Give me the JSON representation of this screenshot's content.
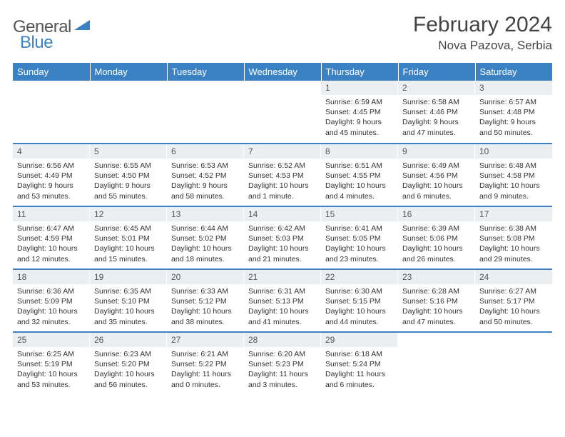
{
  "logo": {
    "general": "General",
    "blue": "Blue"
  },
  "title": "February 2024",
  "location": "Nova Pazova, Serbia",
  "colors": {
    "header_bg": "#3b82c4",
    "header_text": "#ffffff",
    "daynum_bg": "#eceff1",
    "border": "#3b82c4",
    "text": "#333333"
  },
  "day_headers": [
    "Sunday",
    "Monday",
    "Tuesday",
    "Wednesday",
    "Thursday",
    "Friday",
    "Saturday"
  ],
  "weeks": [
    [
      {
        "n": "",
        "sr": "",
        "ss": "",
        "dl": ""
      },
      {
        "n": "",
        "sr": "",
        "ss": "",
        "dl": ""
      },
      {
        "n": "",
        "sr": "",
        "ss": "",
        "dl": ""
      },
      {
        "n": "",
        "sr": "",
        "ss": "",
        "dl": ""
      },
      {
        "n": "1",
        "sr": "Sunrise: 6:59 AM",
        "ss": "Sunset: 4:45 PM",
        "dl": "Daylight: 9 hours and 45 minutes."
      },
      {
        "n": "2",
        "sr": "Sunrise: 6:58 AM",
        "ss": "Sunset: 4:46 PM",
        "dl": "Daylight: 9 hours and 47 minutes."
      },
      {
        "n": "3",
        "sr": "Sunrise: 6:57 AM",
        "ss": "Sunset: 4:48 PM",
        "dl": "Daylight: 9 hours and 50 minutes."
      }
    ],
    [
      {
        "n": "4",
        "sr": "Sunrise: 6:56 AM",
        "ss": "Sunset: 4:49 PM",
        "dl": "Daylight: 9 hours and 53 minutes."
      },
      {
        "n": "5",
        "sr": "Sunrise: 6:55 AM",
        "ss": "Sunset: 4:50 PM",
        "dl": "Daylight: 9 hours and 55 minutes."
      },
      {
        "n": "6",
        "sr": "Sunrise: 6:53 AM",
        "ss": "Sunset: 4:52 PM",
        "dl": "Daylight: 9 hours and 58 minutes."
      },
      {
        "n": "7",
        "sr": "Sunrise: 6:52 AM",
        "ss": "Sunset: 4:53 PM",
        "dl": "Daylight: 10 hours and 1 minute."
      },
      {
        "n": "8",
        "sr": "Sunrise: 6:51 AM",
        "ss": "Sunset: 4:55 PM",
        "dl": "Daylight: 10 hours and 4 minutes."
      },
      {
        "n": "9",
        "sr": "Sunrise: 6:49 AM",
        "ss": "Sunset: 4:56 PM",
        "dl": "Daylight: 10 hours and 6 minutes."
      },
      {
        "n": "10",
        "sr": "Sunrise: 6:48 AM",
        "ss": "Sunset: 4:58 PM",
        "dl": "Daylight: 10 hours and 9 minutes."
      }
    ],
    [
      {
        "n": "11",
        "sr": "Sunrise: 6:47 AM",
        "ss": "Sunset: 4:59 PM",
        "dl": "Daylight: 10 hours and 12 minutes."
      },
      {
        "n": "12",
        "sr": "Sunrise: 6:45 AM",
        "ss": "Sunset: 5:01 PM",
        "dl": "Daylight: 10 hours and 15 minutes."
      },
      {
        "n": "13",
        "sr": "Sunrise: 6:44 AM",
        "ss": "Sunset: 5:02 PM",
        "dl": "Daylight: 10 hours and 18 minutes."
      },
      {
        "n": "14",
        "sr": "Sunrise: 6:42 AM",
        "ss": "Sunset: 5:03 PM",
        "dl": "Daylight: 10 hours and 21 minutes."
      },
      {
        "n": "15",
        "sr": "Sunrise: 6:41 AM",
        "ss": "Sunset: 5:05 PM",
        "dl": "Daylight: 10 hours and 23 minutes."
      },
      {
        "n": "16",
        "sr": "Sunrise: 6:39 AM",
        "ss": "Sunset: 5:06 PM",
        "dl": "Daylight: 10 hours and 26 minutes."
      },
      {
        "n": "17",
        "sr": "Sunrise: 6:38 AM",
        "ss": "Sunset: 5:08 PM",
        "dl": "Daylight: 10 hours and 29 minutes."
      }
    ],
    [
      {
        "n": "18",
        "sr": "Sunrise: 6:36 AM",
        "ss": "Sunset: 5:09 PM",
        "dl": "Daylight: 10 hours and 32 minutes."
      },
      {
        "n": "19",
        "sr": "Sunrise: 6:35 AM",
        "ss": "Sunset: 5:10 PM",
        "dl": "Daylight: 10 hours and 35 minutes."
      },
      {
        "n": "20",
        "sr": "Sunrise: 6:33 AM",
        "ss": "Sunset: 5:12 PM",
        "dl": "Daylight: 10 hours and 38 minutes."
      },
      {
        "n": "21",
        "sr": "Sunrise: 6:31 AM",
        "ss": "Sunset: 5:13 PM",
        "dl": "Daylight: 10 hours and 41 minutes."
      },
      {
        "n": "22",
        "sr": "Sunrise: 6:30 AM",
        "ss": "Sunset: 5:15 PM",
        "dl": "Daylight: 10 hours and 44 minutes."
      },
      {
        "n": "23",
        "sr": "Sunrise: 6:28 AM",
        "ss": "Sunset: 5:16 PM",
        "dl": "Daylight: 10 hours and 47 minutes."
      },
      {
        "n": "24",
        "sr": "Sunrise: 6:27 AM",
        "ss": "Sunset: 5:17 PM",
        "dl": "Daylight: 10 hours and 50 minutes."
      }
    ],
    [
      {
        "n": "25",
        "sr": "Sunrise: 6:25 AM",
        "ss": "Sunset: 5:19 PM",
        "dl": "Daylight: 10 hours and 53 minutes."
      },
      {
        "n": "26",
        "sr": "Sunrise: 6:23 AM",
        "ss": "Sunset: 5:20 PM",
        "dl": "Daylight: 10 hours and 56 minutes."
      },
      {
        "n": "27",
        "sr": "Sunrise: 6:21 AM",
        "ss": "Sunset: 5:22 PM",
        "dl": "Daylight: 11 hours and 0 minutes."
      },
      {
        "n": "28",
        "sr": "Sunrise: 6:20 AM",
        "ss": "Sunset: 5:23 PM",
        "dl": "Daylight: 11 hours and 3 minutes."
      },
      {
        "n": "29",
        "sr": "Sunrise: 6:18 AM",
        "ss": "Sunset: 5:24 PM",
        "dl": "Daylight: 11 hours and 6 minutes."
      },
      {
        "n": "",
        "sr": "",
        "ss": "",
        "dl": ""
      },
      {
        "n": "",
        "sr": "",
        "ss": "",
        "dl": ""
      }
    ]
  ]
}
